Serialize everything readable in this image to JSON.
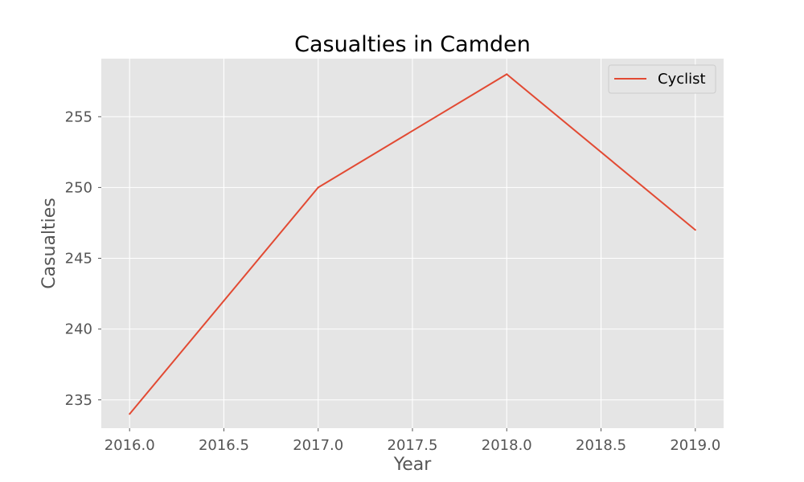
{
  "chart_data": {
    "type": "line",
    "title": "Casualties in Camden",
    "xlabel": "Year",
    "ylabel": "Casualties",
    "x": [
      2016,
      2017,
      2018,
      2019
    ],
    "series": [
      {
        "name": "Cyclist",
        "values": [
          234,
          250,
          258,
          247
        ],
        "color": "#e24a33"
      }
    ],
    "xlim": [
      2015.85,
      2019.15
    ],
    "ylim": [
      233.0,
      259.1
    ],
    "xticks": [
      "2016.0",
      "2016.5",
      "2017.0",
      "2017.5",
      "2018.0",
      "2018.5",
      "2019.0"
    ],
    "yticks": [
      "235",
      "240",
      "245",
      "250",
      "255"
    ],
    "grid": true,
    "legend_position": "top-right",
    "background_color": "#e5e5e5"
  }
}
